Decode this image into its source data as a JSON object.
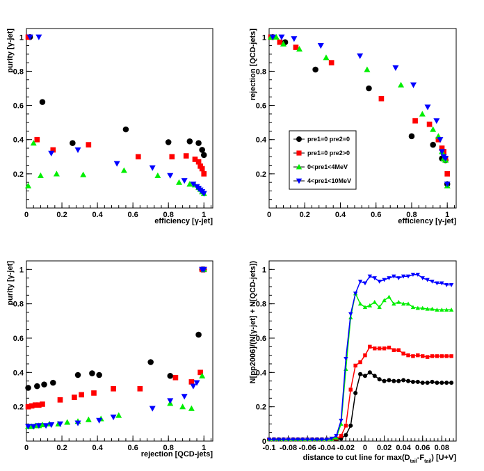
{
  "colors": {
    "pre1=0 pre2=0": "#000000",
    "pre1=0 pre2>0": "#ff0000",
    "0<pre1<4MeV": "#00ee00",
    "4<pre1<10MeV": "#0000ff"
  },
  "chart_data": [
    {
      "type": "scatter",
      "xlabel": "efficiency [γ-jet]",
      "ylabel": "purity [γ-jet]",
      "xlim": [
        0,
        1.05
      ],
      "ylim": [
        0,
        1.05
      ],
      "xticks": [
        0,
        0.2,
        0.4,
        0.6,
        0.8,
        1
      ],
      "yticks": [
        0.2,
        0.4,
        0.6,
        0.8,
        1
      ],
      "series": [
        {
          "name": "pre1=0 pre2=0",
          "marker": "circle",
          "x": [
            0.02,
            0.09,
            0.26,
            0.56,
            0.8,
            0.92,
            0.97,
            0.99,
            1.0
          ],
          "y": [
            1.0,
            0.62,
            0.38,
            0.46,
            0.385,
            0.39,
            0.38,
            0.34,
            0.31
          ]
        },
        {
          "name": "pre1=0 pre2>0",
          "marker": "square",
          "x": [
            0.01,
            0.06,
            0.15,
            0.35,
            0.63,
            0.82,
            0.9,
            0.95,
            0.97,
            0.98,
            0.99,
            1.0
          ],
          "y": [
            1.0,
            0.4,
            0.34,
            0.37,
            0.3,
            0.3,
            0.305,
            0.285,
            0.27,
            0.245,
            0.23,
            0.2
          ]
        },
        {
          "name": "0<pre1<4MeV",
          "marker": "triangle-up",
          "x": [
            0.01,
            0.04,
            0.08,
            0.17,
            0.32,
            0.55,
            0.74,
            0.86,
            0.92,
            0.95,
            0.97,
            0.98,
            0.99,
            1.0
          ],
          "y": [
            0.13,
            0.38,
            0.19,
            0.2,
            0.195,
            0.22,
            0.19,
            0.15,
            0.14,
            0.135,
            0.12,
            0.11,
            0.095,
            0.085
          ]
        },
        {
          "name": "4<pre1<10MeV",
          "marker": "triangle-down",
          "x": [
            0.02,
            0.07,
            0.14,
            0.29,
            0.51,
            0.71,
            0.81,
            0.89,
            0.94,
            0.96,
            0.97,
            0.98,
            0.99,
            1.0
          ],
          "y": [
            1.0,
            1.0,
            0.32,
            0.34,
            0.26,
            0.235,
            0.19,
            0.16,
            0.14,
            0.125,
            0.115,
            0.105,
            0.095,
            0.085
          ]
        }
      ]
    },
    {
      "type": "scatter",
      "xlabel": "efficiency [γ-jet]",
      "ylabel": "rejection [QCD-jets]",
      "xlim": [
        0,
        1.05
      ],
      "ylim": [
        0,
        1.05
      ],
      "xticks": [
        0,
        0.2,
        0.4,
        0.6,
        0.8,
        1
      ],
      "yticks": [
        0.2,
        0.4,
        0.6,
        0.8,
        1
      ],
      "legend": {
        "placement": "center-left",
        "entries": [
          "pre1=0 pre2=0",
          "pre1=0 pre2>0",
          "0<pre1<4MeV",
          "4<pre1<10MeV"
        ]
      },
      "series": [
        {
          "name": "pre1=0 pre2=0",
          "marker": "circle",
          "x": [
            0.02,
            0.09,
            0.26,
            0.56,
            0.8,
            0.92,
            0.97,
            0.99,
            1.0
          ],
          "y": [
            1.0,
            0.97,
            0.81,
            0.7,
            0.42,
            0.37,
            0.29,
            0.28,
            0.14
          ]
        },
        {
          "name": "pre1=0 pre2>0",
          "marker": "square",
          "x": [
            0.01,
            0.06,
            0.15,
            0.35,
            0.63,
            0.82,
            0.9,
            0.95,
            0.97,
            0.98,
            0.99,
            1.0
          ],
          "y": [
            1.0,
            0.97,
            0.94,
            0.85,
            0.64,
            0.51,
            0.49,
            0.4,
            0.35,
            0.33,
            0.29,
            0.2
          ]
        },
        {
          "name": "0<pre1<4MeV",
          "marker": "triangle-up",
          "x": [
            0.01,
            0.04,
            0.08,
            0.17,
            0.32,
            0.55,
            0.74,
            0.86,
            0.92,
            0.95,
            0.97,
            0.98,
            0.99,
            1.0
          ],
          "y": [
            1.0,
            1.0,
            0.96,
            0.93,
            0.88,
            0.81,
            0.72,
            0.55,
            0.46,
            0.42,
            0.33,
            0.29,
            0.28,
            0.13
          ]
        },
        {
          "name": "4<pre1<10MeV",
          "marker": "triangle-down",
          "x": [
            0.02,
            0.07,
            0.14,
            0.29,
            0.51,
            0.71,
            0.81,
            0.89,
            0.94,
            0.96,
            0.97,
            0.98,
            0.99,
            1.0
          ],
          "y": [
            1.0,
            1.0,
            0.99,
            0.95,
            0.89,
            0.82,
            0.72,
            0.59,
            0.51,
            0.4,
            0.33,
            0.3,
            0.29,
            0.14
          ]
        }
      ]
    },
    {
      "type": "scatter",
      "xlabel": "rejection [QCD-jets]",
      "ylabel": "purity [γ-jet]",
      "xlim": [
        0,
        1.05
      ],
      "ylim": [
        0,
        1.05
      ],
      "xticks": [
        0,
        0.2,
        0.4,
        0.6,
        0.8,
        1
      ],
      "yticks": [
        0.2,
        0.4,
        0.6,
        0.8,
        1
      ],
      "series": [
        {
          "name": "pre1=0 pre2=0",
          "marker": "circle",
          "x": [
            0.01,
            0.06,
            0.1,
            0.15,
            0.29,
            0.37,
            0.41,
            0.7,
            0.81,
            0.97,
            0.99,
            1.0
          ],
          "y": [
            0.31,
            0.32,
            0.33,
            0.34,
            0.385,
            0.395,
            0.385,
            0.46,
            0.38,
            0.62,
            1.0,
            1.0
          ]
        },
        {
          "name": "pre1=0 pre2>0",
          "marker": "square",
          "x": [
            0.01,
            0.03,
            0.05,
            0.07,
            0.09,
            0.19,
            0.27,
            0.31,
            0.38,
            0.49,
            0.64,
            0.84,
            0.93,
            0.98,
            0.99,
            1.0
          ],
          "y": [
            0.2,
            0.205,
            0.21,
            0.21,
            0.215,
            0.24,
            0.255,
            0.27,
            0.28,
            0.305,
            0.305,
            0.37,
            0.345,
            0.4,
            1.0,
            1.0
          ]
        },
        {
          "name": "0<pre1<4MeV",
          "marker": "triangle-up",
          "x": [
            0.01,
            0.03,
            0.05,
            0.07,
            0.09,
            0.13,
            0.18,
            0.23,
            0.29,
            0.35,
            0.42,
            0.52,
            0.81,
            0.88,
            0.93,
            0.99,
            1.0
          ],
          "y": [
            0.085,
            0.085,
            0.09,
            0.09,
            0.095,
            0.1,
            0.1,
            0.11,
            0.115,
            0.125,
            0.13,
            0.15,
            0.22,
            0.2,
            0.19,
            0.38,
            1.0
          ]
        },
        {
          "name": "4<pre1<10MeV",
          "marker": "triangle-down",
          "x": [
            0.01,
            0.04,
            0.07,
            0.11,
            0.14,
            0.19,
            0.29,
            0.41,
            0.49,
            0.71,
            0.81,
            0.89,
            0.94,
            0.96,
            0.99,
            1.0
          ],
          "y": [
            0.085,
            0.085,
            0.09,
            0.09,
            0.095,
            0.1,
            0.105,
            0.12,
            0.14,
            0.19,
            0.235,
            0.26,
            0.32,
            0.34,
            1.0,
            1.0
          ]
        }
      ]
    },
    {
      "type": "line",
      "xlabel": "distance to cut line for max(D  -F  ) [U+V]",
      "xlabel_main": "distance to cut line for max(D",
      "xlabel_sub1": "tail",
      "xlabel_mid": "-F",
      "xlabel_sub2": "tail",
      "xlabel_end": ") [U+V]",
      "ylabel": "N[pp2006]/(N[γ-jet] + N[QCD-jets])",
      "xlim": [
        -0.1,
        0.095
      ],
      "ylim": [
        0,
        1.05
      ],
      "xticks": [
        -0.1,
        -0.08,
        -0.06,
        -0.04,
        -0.02,
        0,
        0.02,
        0.04,
        0.06,
        0.08
      ],
      "xtick_labels": [
        "-0.1",
        "-0.08",
        "-0.06",
        "-0.04",
        "-0.02",
        "0",
        "0.02",
        "0.04",
        "0.06",
        "0.08"
      ],
      "yticks": [
        0,
        0.2,
        0.4,
        0.6,
        0.8,
        1
      ],
      "series": [
        {
          "name": "pre1=0 pre2=0",
          "marker": "circle",
          "x": [
            -0.1,
            -0.095,
            -0.09,
            -0.085,
            -0.08,
            -0.075,
            -0.07,
            -0.065,
            -0.06,
            -0.055,
            -0.05,
            -0.045,
            -0.04,
            -0.035,
            -0.03,
            -0.025,
            -0.02,
            -0.015,
            -0.01,
            -0.005,
            0,
            0.005,
            0.01,
            0.015,
            0.02,
            0.025,
            0.03,
            0.035,
            0.04,
            0.045,
            0.05,
            0.055,
            0.06,
            0.065,
            0.07,
            0.075,
            0.08,
            0.085,
            0.09
          ],
          "y": [
            0.01,
            0.01,
            0.01,
            0.01,
            0.01,
            0.01,
            0.01,
            0.01,
            0.01,
            0.01,
            0.01,
            0.01,
            0.01,
            0.01,
            0.01,
            0.015,
            0.035,
            0.09,
            0.28,
            0.39,
            0.38,
            0.4,
            0.38,
            0.36,
            0.35,
            0.355,
            0.35,
            0.35,
            0.355,
            0.35,
            0.345,
            0.345,
            0.34,
            0.34,
            0.345,
            0.34,
            0.34,
            0.34,
            0.34
          ]
        },
        {
          "name": "pre1=0 pre2>0",
          "marker": "square",
          "x": [
            -0.1,
            -0.095,
            -0.09,
            -0.085,
            -0.08,
            -0.075,
            -0.07,
            -0.065,
            -0.06,
            -0.055,
            -0.05,
            -0.045,
            -0.04,
            -0.035,
            -0.03,
            -0.025,
            -0.02,
            -0.015,
            -0.01,
            -0.005,
            0,
            0.005,
            0.01,
            0.015,
            0.02,
            0.025,
            0.03,
            0.035,
            0.04,
            0.045,
            0.05,
            0.055,
            0.06,
            0.065,
            0.07,
            0.075,
            0.08,
            0.085,
            0.09
          ],
          "y": [
            0.01,
            0.01,
            0.01,
            0.01,
            0.01,
            0.01,
            0.01,
            0.01,
            0.01,
            0.01,
            0.01,
            0.01,
            0.01,
            0.01,
            0.015,
            0.03,
            0.09,
            0.3,
            0.44,
            0.46,
            0.5,
            0.55,
            0.54,
            0.54,
            0.54,
            0.545,
            0.53,
            0.53,
            0.51,
            0.5,
            0.495,
            0.5,
            0.495,
            0.49,
            0.495,
            0.495,
            0.495,
            0.495,
            0.495
          ]
        },
        {
          "name": "0<pre1<4MeV",
          "marker": "triangle-up",
          "x": [
            -0.1,
            -0.095,
            -0.09,
            -0.085,
            -0.08,
            -0.075,
            -0.07,
            -0.065,
            -0.06,
            -0.055,
            -0.05,
            -0.045,
            -0.04,
            -0.035,
            -0.03,
            -0.025,
            -0.02,
            -0.015,
            -0.01,
            -0.005,
            0,
            0.005,
            0.01,
            0.015,
            0.02,
            0.025,
            0.03,
            0.035,
            0.04,
            0.045,
            0.05,
            0.055,
            0.06,
            0.065,
            0.07,
            0.075,
            0.08,
            0.085,
            0.09
          ],
          "y": [
            0.01,
            0.01,
            0.01,
            0.01,
            0.01,
            0.01,
            0.01,
            0.01,
            0.01,
            0.01,
            0.01,
            0.01,
            0.01,
            0.01,
            0.02,
            0.1,
            0.42,
            0.72,
            0.86,
            0.8,
            0.78,
            0.79,
            0.81,
            0.78,
            0.82,
            0.84,
            0.8,
            0.81,
            0.8,
            0.8,
            0.78,
            0.775,
            0.775,
            0.77,
            0.77,
            0.765,
            0.765,
            0.765,
            0.765
          ]
        },
        {
          "name": "4<pre1<10MeV",
          "marker": "triangle-down",
          "x": [
            -0.1,
            -0.095,
            -0.09,
            -0.085,
            -0.08,
            -0.075,
            -0.07,
            -0.065,
            -0.06,
            -0.055,
            -0.05,
            -0.045,
            -0.04,
            -0.035,
            -0.03,
            -0.025,
            -0.02,
            -0.015,
            -0.01,
            -0.005,
            0,
            0.005,
            0.01,
            0.015,
            0.02,
            0.025,
            0.03,
            0.035,
            0.04,
            0.045,
            0.05,
            0.055,
            0.06,
            0.065,
            0.07,
            0.075,
            0.08,
            0.085,
            0.09
          ],
          "y": [
            0.01,
            0.01,
            0.01,
            0.01,
            0.01,
            0.01,
            0.01,
            0.01,
            0.01,
            0.01,
            0.01,
            0.01,
            0.01,
            0.015,
            0.03,
            0.12,
            0.48,
            0.74,
            0.86,
            0.93,
            0.92,
            0.96,
            0.95,
            0.93,
            0.94,
            0.95,
            0.96,
            0.95,
            0.96,
            0.96,
            0.97,
            0.97,
            0.95,
            0.94,
            0.93,
            0.92,
            0.92,
            0.91,
            0.91
          ]
        }
      ]
    }
  ]
}
